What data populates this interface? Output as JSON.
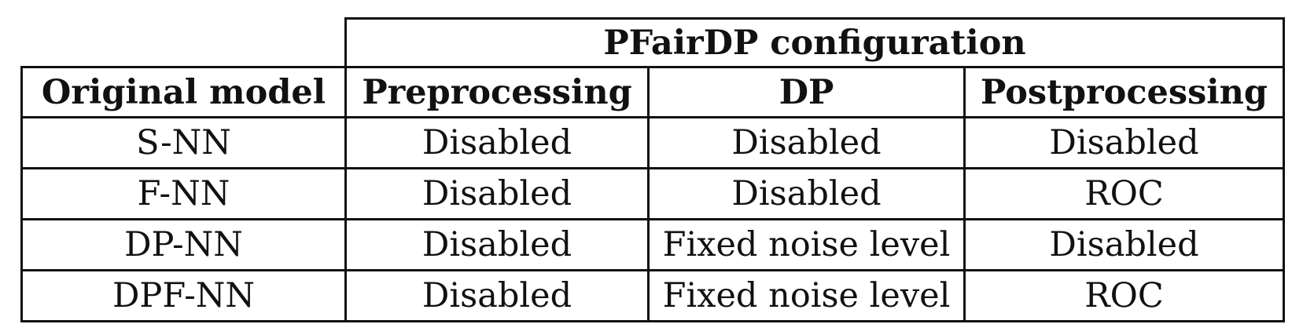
{
  "table": {
    "group_header": "PFairDP configuration",
    "columns": [
      "Original model",
      "Preprocessing",
      "DP",
      "Postprocessing"
    ],
    "rows": [
      [
        "S-NN",
        "Disabled",
        "Disabled",
        "Disabled"
      ],
      [
        "F-NN",
        "Disabled",
        "Disabled",
        "ROC"
      ],
      [
        "DP-NN",
        "Disabled",
        "Fixed noise level",
        "Disabled"
      ],
      [
        "DPF-NN",
        "Disabled",
        "Fixed noise level",
        "ROC"
      ]
    ]
  }
}
